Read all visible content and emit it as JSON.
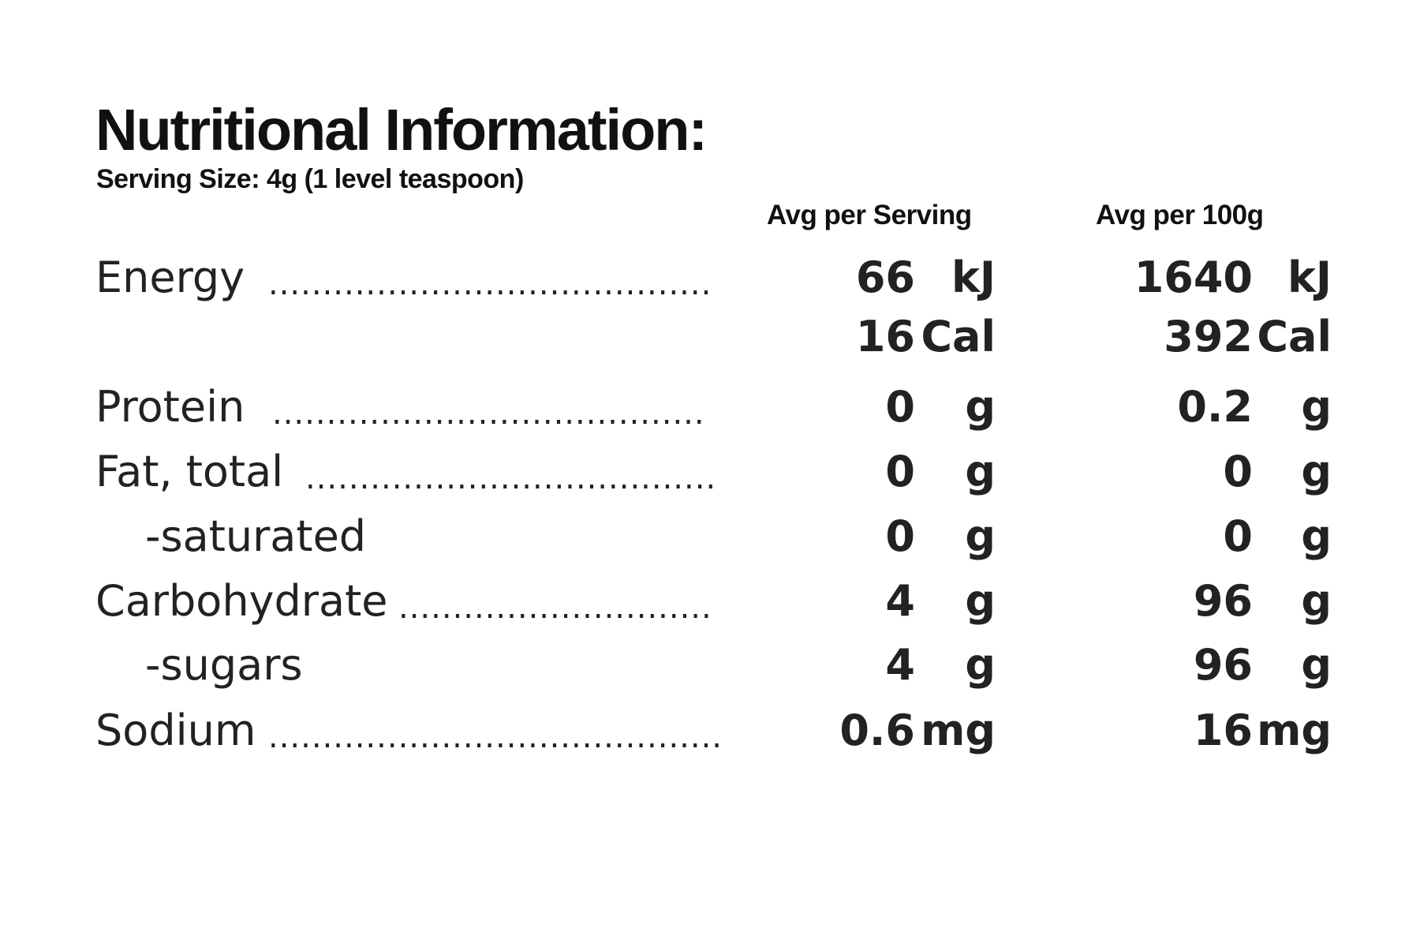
{
  "title": "Nutritional Information:",
  "serving_size": "Serving Size: 4g (1 level teaspoon)",
  "columns": {
    "per_serving": "Avg per Serving",
    "per_100g": "Avg per 100g"
  },
  "rows": [
    {
      "label": "Energy",
      "dots": "..............................................",
      "serving": "66",
      "serving_unit": "kJ",
      "per100": "1640",
      "per100_unit": "kJ"
    },
    {
      "label": "",
      "dots": "",
      "serving": "16",
      "serving_unit": "Cal",
      "per100": "392",
      "per100_unit": "Cal"
    },
    {
      "label": "Protein",
      "dots": ".............................................",
      "serving": "0",
      "serving_unit": "g",
      "per100": "0.2",
      "per100_unit": "g"
    },
    {
      "label": "Fat, total",
      "dots": "..........................................",
      "serving": "0",
      "serving_unit": "g",
      "per100": "0",
      "per100_unit": "g"
    },
    {
      "label": "-saturated",
      "dots": "",
      "serving": "0",
      "serving_unit": "g",
      "per100": "0",
      "per100_unit": "g"
    },
    {
      "label": "Carbohydrate",
      "dots": "..................................",
      "serving": "4",
      "serving_unit": "g",
      "per100": "96",
      "per100_unit": "g"
    },
    {
      "label": "-sugars",
      "dots": "",
      "serving": "4",
      "serving_unit": "g",
      "per100": "96",
      "per100_unit": "g"
    },
    {
      "label": "Sodium",
      "dots": "...............................................",
      "serving": "0.6",
      "serving_unit": "mg",
      "per100": "16",
      "per100_unit": "mg"
    }
  ]
}
